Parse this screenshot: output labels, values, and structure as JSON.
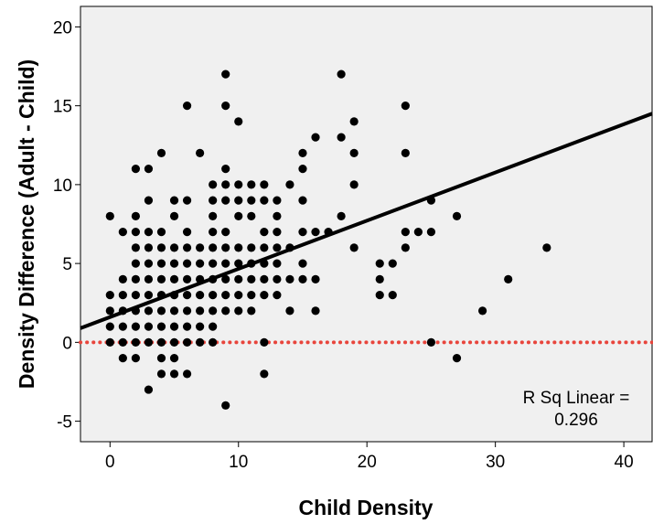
{
  "chart_data": {
    "type": "scatter",
    "xlabel": "Child Density",
    "ylabel": "Density Difference (Adult - Child)",
    "xlim": [
      -2.3,
      42.2
    ],
    "ylim": [
      -6.3,
      21.3
    ],
    "xticks": [
      "0",
      "10",
      "20",
      "30",
      "40"
    ],
    "yticks": [
      "-5",
      "0",
      "5",
      "10",
      "15",
      "20"
    ],
    "grid": false,
    "legend": "none",
    "background_color": "#f0f0f0",
    "point_color": "#000000",
    "reference_line": {
      "y": 0,
      "color": "#e8453c",
      "style": "dotted"
    },
    "fit_line": {
      "x0": -2.3,
      "y0": 0.9,
      "x1": 42.2,
      "y1": 14.5,
      "color": "#000000"
    },
    "annotation": {
      "line1": "R Sq Linear =",
      "line2": "0.296"
    },
    "points": [
      [
        0,
        8
      ],
      [
        0,
        3
      ],
      [
        0,
        2
      ],
      [
        0,
        1
      ],
      [
        0,
        0
      ],
      [
        1,
        7
      ],
      [
        1,
        4
      ],
      [
        1,
        3
      ],
      [
        1,
        2
      ],
      [
        1,
        1
      ],
      [
        1,
        0
      ],
      [
        1,
        -1
      ],
      [
        2,
        11
      ],
      [
        2,
        8
      ],
      [
        2,
        7
      ],
      [
        2,
        6
      ],
      [
        2,
        5
      ],
      [
        2,
        4
      ],
      [
        2,
        3
      ],
      [
        2,
        2
      ],
      [
        2,
        1
      ],
      [
        2,
        0
      ],
      [
        2,
        -1
      ],
      [
        3,
        11
      ],
      [
        3,
        9
      ],
      [
        3,
        7
      ],
      [
        3,
        6
      ],
      [
        3,
        5
      ],
      [
        3,
        4
      ],
      [
        3,
        3
      ],
      [
        3,
        2
      ],
      [
        3,
        1
      ],
      [
        3,
        0
      ],
      [
        3,
        -3
      ],
      [
        4,
        12
      ],
      [
        4,
        7
      ],
      [
        4,
        6
      ],
      [
        4,
        5
      ],
      [
        4,
        4
      ],
      [
        4,
        3
      ],
      [
        4,
        2
      ],
      [
        4,
        1
      ],
      [
        4,
        0
      ],
      [
        4,
        -1
      ],
      [
        4,
        -2
      ],
      [
        5,
        9
      ],
      [
        5,
        8
      ],
      [
        5,
        6
      ],
      [
        5,
        5
      ],
      [
        5,
        4
      ],
      [
        5,
        3
      ],
      [
        5,
        2
      ],
      [
        5,
        1
      ],
      [
        5,
        0
      ],
      [
        5,
        -1
      ],
      [
        5,
        -2
      ],
      [
        6,
        15
      ],
      [
        6,
        9
      ],
      [
        6,
        7
      ],
      [
        6,
        6
      ],
      [
        6,
        5
      ],
      [
        6,
        4
      ],
      [
        6,
        3
      ],
      [
        6,
        2
      ],
      [
        6,
        1
      ],
      [
        6,
        0
      ],
      [
        6,
        -2
      ],
      [
        7,
        12
      ],
      [
        7,
        6
      ],
      [
        7,
        5
      ],
      [
        7,
        4
      ],
      [
        7,
        3
      ],
      [
        7,
        2
      ],
      [
        7,
        1
      ],
      [
        7,
        0
      ],
      [
        8,
        10
      ],
      [
        8,
        9
      ],
      [
        8,
        8
      ],
      [
        8,
        7
      ],
      [
        8,
        6
      ],
      [
        8,
        5
      ],
      [
        8,
        4
      ],
      [
        8,
        3
      ],
      [
        8,
        2
      ],
      [
        8,
        1
      ],
      [
        8,
        0
      ],
      [
        9,
        17
      ],
      [
        9,
        15
      ],
      [
        9,
        11
      ],
      [
        9,
        10
      ],
      [
        9,
        9
      ],
      [
        9,
        7
      ],
      [
        9,
        6
      ],
      [
        9,
        5
      ],
      [
        9,
        4
      ],
      [
        9,
        3
      ],
      [
        9,
        2
      ],
      [
        9,
        -4
      ],
      [
        10,
        14
      ],
      [
        10,
        10
      ],
      [
        10,
        9
      ],
      [
        10,
        8
      ],
      [
        10,
        6
      ],
      [
        10,
        5
      ],
      [
        10,
        4
      ],
      [
        10,
        3
      ],
      [
        10,
        2
      ],
      [
        11,
        10
      ],
      [
        11,
        9
      ],
      [
        11,
        8
      ],
      [
        11,
        6
      ],
      [
        11,
        5
      ],
      [
        11,
        4
      ],
      [
        11,
        3
      ],
      [
        11,
        2
      ],
      [
        12,
        10
      ],
      [
        12,
        9
      ],
      [
        12,
        7
      ],
      [
        12,
        6
      ],
      [
        12,
        5
      ],
      [
        12,
        4
      ],
      [
        12,
        3
      ],
      [
        12,
        0
      ],
      [
        12,
        -2
      ],
      [
        13,
        9
      ],
      [
        13,
        8
      ],
      [
        13,
        7
      ],
      [
        13,
        6
      ],
      [
        13,
        5
      ],
      [
        13,
        4
      ],
      [
        13,
        3
      ],
      [
        14,
        10
      ],
      [
        14,
        6
      ],
      [
        14,
        4
      ],
      [
        14,
        2
      ],
      [
        15,
        12
      ],
      [
        15,
        11
      ],
      [
        15,
        9
      ],
      [
        15,
        7
      ],
      [
        15,
        5
      ],
      [
        15,
        4
      ],
      [
        16,
        13
      ],
      [
        16,
        7
      ],
      [
        16,
        4
      ],
      [
        16,
        2
      ],
      [
        17,
        7
      ],
      [
        18,
        17
      ],
      [
        18,
        13
      ],
      [
        18,
        8
      ],
      [
        19,
        14
      ],
      [
        19,
        12
      ],
      [
        19,
        10
      ],
      [
        19,
        6
      ],
      [
        21,
        5
      ],
      [
        21,
        4
      ],
      [
        21,
        3
      ],
      [
        22,
        5
      ],
      [
        22,
        3
      ],
      [
        23,
        15
      ],
      [
        23,
        12
      ],
      [
        23,
        7
      ],
      [
        23,
        6
      ],
      [
        24,
        7
      ],
      [
        25,
        9
      ],
      [
        25,
        7
      ],
      [
        25,
        0
      ],
      [
        27,
        8
      ],
      [
        27,
        -1
      ],
      [
        29,
        2
      ],
      [
        31,
        4
      ],
      [
        34,
        6
      ]
    ]
  }
}
